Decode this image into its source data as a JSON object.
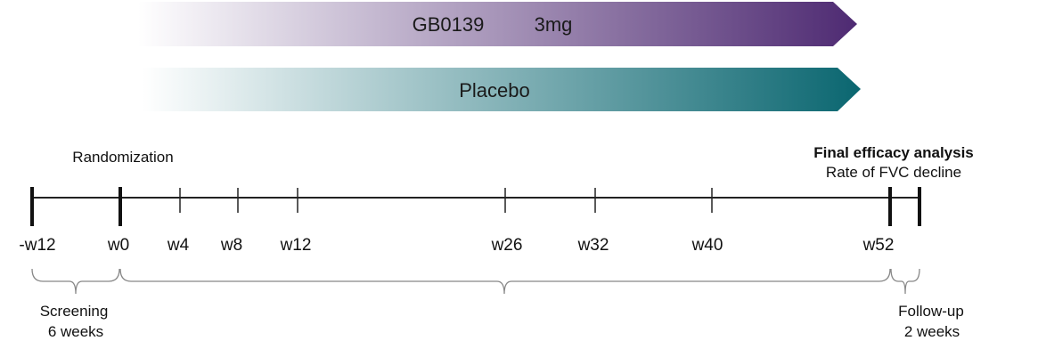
{
  "arrows": {
    "drug": {
      "name": "GB0139",
      "dose": "3mg",
      "color_start": "#ffffff",
      "color_end": "#4e2a72"
    },
    "placebo": {
      "label": "Placebo",
      "color_start": "#ffffff",
      "color_end": "#0a6670"
    }
  },
  "timeline": {
    "randomization_label": "Randomization",
    "final_analysis_title": "Final efficacy analysis",
    "final_analysis_subtitle": "Rate of FVC decline",
    "ticks": [
      "-w12",
      "w0",
      "w4",
      "w8",
      "w12",
      "w26",
      "w32",
      "w40",
      "w52"
    ],
    "screening": {
      "line1": "Screening",
      "line2": "6 weeks"
    },
    "followup": {
      "line1": "Follow-up",
      "line2": "2 weeks"
    }
  }
}
